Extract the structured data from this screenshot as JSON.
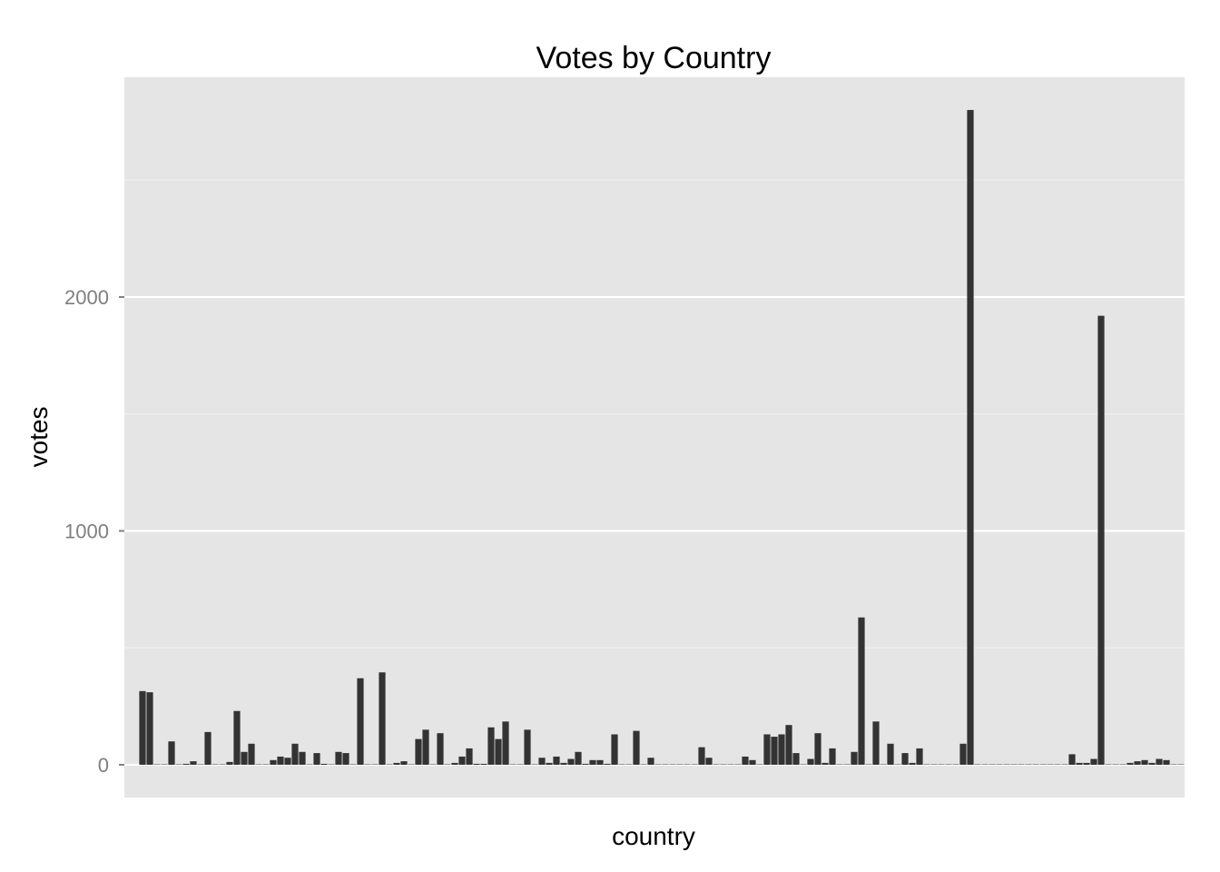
{
  "chart_data": {
    "type": "bar",
    "title": "Votes by Country",
    "xlabel": "country",
    "ylabel": "votes",
    "ylim": [
      -140,
      2940
    ],
    "y_ticks": [
      0,
      1000,
      2000
    ],
    "y_tick_labels": [
      "0",
      "1000",
      "2000"
    ],
    "x_tick_labels": "none",
    "grid": true,
    "legend": "none",
    "colors": {
      "panel": "#E5E5E5",
      "grid_major": "#FFFFFF",
      "grid_minor": "#F2F2F2",
      "bar": "#333333",
      "tick_label": "#7F7F7F"
    },
    "values": [
      0,
      0,
      315,
      310,
      2,
      2,
      100,
      2,
      4,
      15,
      2,
      140,
      2,
      2,
      12,
      230,
      55,
      90,
      2,
      2,
      20,
      35,
      30,
      90,
      55,
      2,
      50,
      4,
      2,
      55,
      50,
      2,
      370,
      2,
      2,
      395,
      2,
      8,
      15,
      2,
      110,
      150,
      2,
      135,
      2,
      8,
      35,
      70,
      4,
      4,
      160,
      110,
      185,
      2,
      2,
      150,
      2,
      30,
      8,
      35,
      8,
      25,
      55,
      4,
      20,
      20,
      4,
      130,
      2,
      2,
      145,
      2,
      30,
      2,
      2,
      2,
      2,
      2,
      2,
      75,
      30,
      2,
      2,
      2,
      2,
      35,
      20,
      2,
      130,
      120,
      130,
      170,
      50,
      2,
      25,
      135,
      8,
      70,
      2,
      2,
      55,
      630,
      2,
      185,
      2,
      90,
      2,
      50,
      8,
      70,
      2,
      2,
      2,
      2,
      2,
      90,
      2800,
      2,
      2,
      2,
      2,
      2,
      2,
      2,
      2,
      2,
      2,
      2,
      2,
      2,
      45,
      8,
      8,
      25,
      1920,
      2,
      2,
      2,
      8,
      15,
      20,
      8,
      25,
      20,
      2,
      2
    ]
  }
}
